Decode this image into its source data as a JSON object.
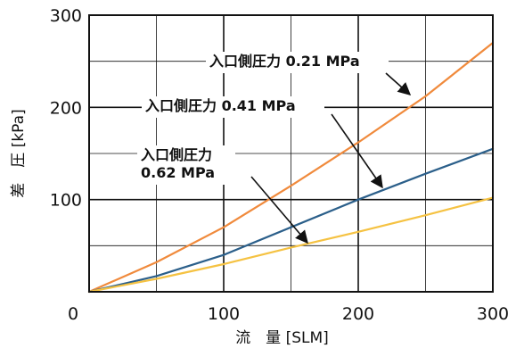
{
  "chart_data": {
    "type": "line",
    "xlabel": "流　量 [SLM]",
    "ylabel": "差　圧 [kPa]",
    "xlim": [
      0,
      300
    ],
    "ylim": [
      0,
      300
    ],
    "x_ticks": [
      0,
      100,
      200,
      300
    ],
    "y_ticks": [
      100,
      200,
      300
    ],
    "grid": true,
    "series": [
      {
        "name": "入口側圧力 0.21 MPa",
        "color": "#f08a3c",
        "x": [
          0,
          50,
          100,
          150,
          200,
          250,
          300
        ],
        "y": [
          0,
          32,
          70,
          115,
          162,
          212,
          270
        ]
      },
      {
        "name": "入口側圧力 0.41 MPa",
        "color": "#2b5f8a",
        "x": [
          0,
          50,
          100,
          150,
          200,
          250,
          300
        ],
        "y": [
          0,
          17,
          40,
          70,
          100,
          128,
          155
        ]
      },
      {
        "name": "入口側圧力 0.62 MPa",
        "color": "#f5c242",
        "x": [
          0,
          50,
          100,
          150,
          200,
          250,
          300
        ],
        "y": [
          0,
          14,
          30,
          48,
          65,
          83,
          102
        ]
      }
    ],
    "annotations": [
      {
        "lines": [
          "入口側圧力 0.21 MPa"
        ],
        "series": 0
      },
      {
        "lines": [
          "入口側圧力 0.41 MPa"
        ],
        "series": 1
      },
      {
        "lines": [
          "入口側圧力",
          "0.62 MPa"
        ],
        "series": 2
      }
    ]
  }
}
